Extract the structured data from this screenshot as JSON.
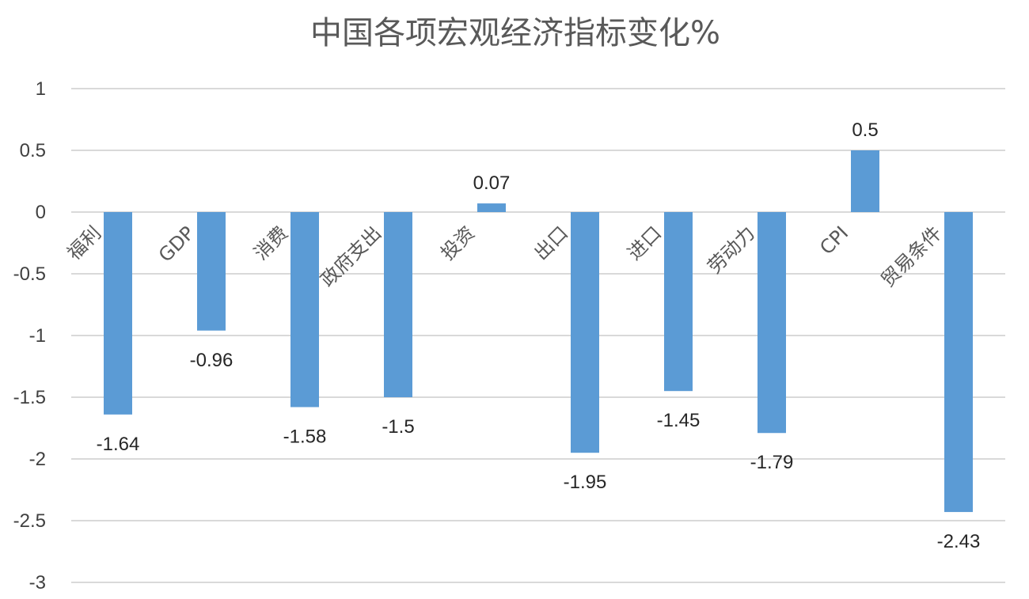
{
  "chart_data": {
    "type": "bar",
    "title": "中国各项宏观经济指标变化%",
    "xlabel": "",
    "ylabel": "",
    "categories": [
      "福利",
      "GDP",
      "消费",
      "政府支出",
      "投资",
      "出口",
      "进口",
      "劳动力",
      "CPI",
      "贸易条件"
    ],
    "values": [
      -1.64,
      -0.96,
      -1.58,
      -1.5,
      0.07,
      -1.95,
      -1.45,
      -1.79,
      0.5,
      -2.43
    ],
    "value_labels": [
      "-1.64",
      "-0.96",
      "-1.58",
      "-1.5",
      "0.07",
      "-1.95",
      "-1.45",
      "-1.79",
      "0.5",
      "-2.43"
    ],
    "ylim": [
      -3,
      1
    ],
    "yticks": [
      1,
      0.5,
      0,
      -0.5,
      -1,
      -1.5,
      -2,
      -2.5,
      -3
    ],
    "ytick_labels": [
      "1",
      "0.5",
      "0",
      "-0.5",
      "-1",
      "-1.5",
      "-2",
      "-2.5",
      "-3"
    ],
    "grid": true,
    "legend": "none",
    "bar_color": "#5b9bd5"
  }
}
